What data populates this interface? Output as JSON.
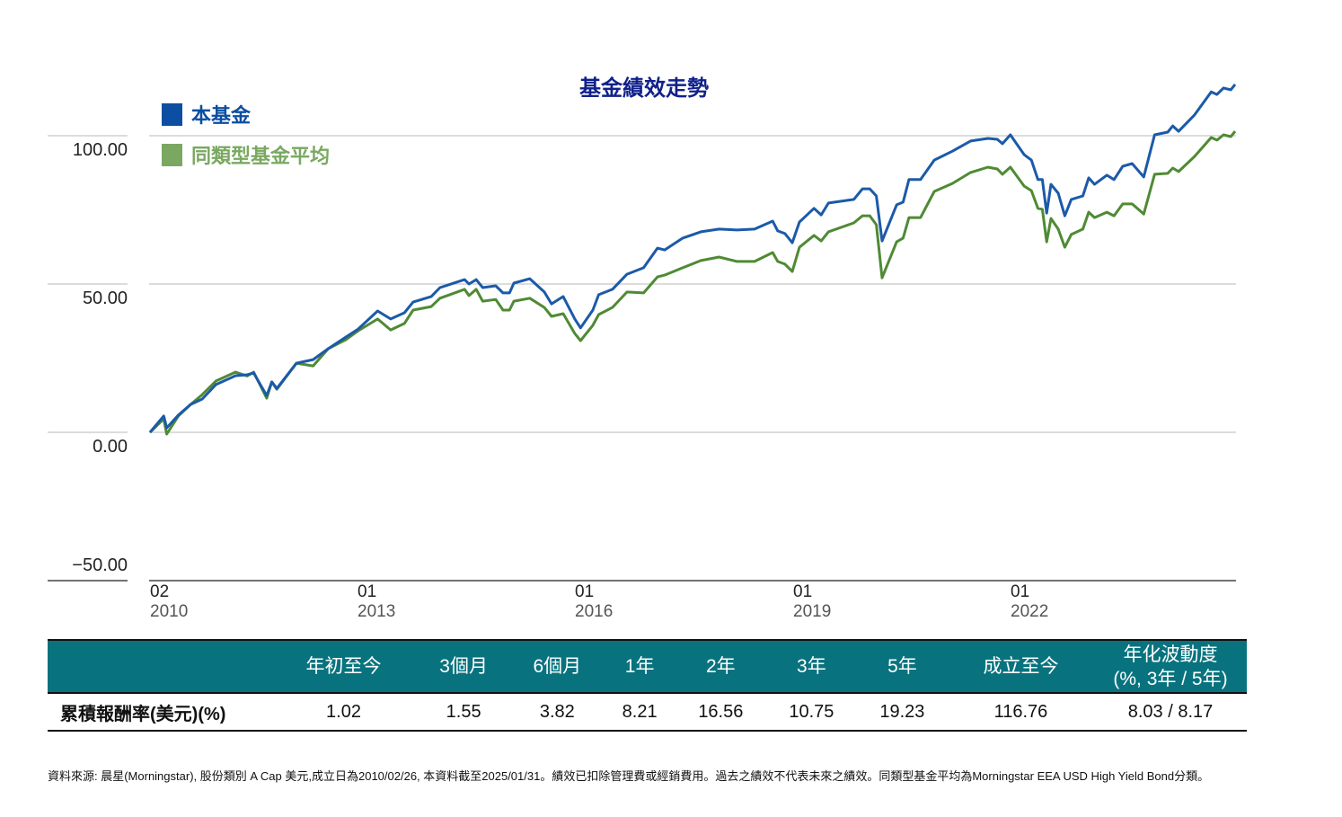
{
  "title": "基金績效走勢",
  "legend": [
    {
      "label": "本基金",
      "color": "#0b4ea2"
    },
    {
      "label": "同類型基金平均",
      "color": "#7aa861"
    }
  ],
  "y_ticks": [
    "100.00",
    "50.00",
    "0.00",
    "−50.00"
  ],
  "x_ticks": [
    {
      "month": "02",
      "year": "2010"
    },
    {
      "month": "01",
      "year": "2013"
    },
    {
      "month": "01",
      "year": "2016"
    },
    {
      "month": "01",
      "year": "2019"
    },
    {
      "month": "01",
      "year": "2022"
    }
  ],
  "chart_data": {
    "type": "line",
    "title": "基金績效走勢",
    "ylim": [
      -50,
      117
    ],
    "yticks": [
      100,
      50,
      0,
      -50
    ],
    "xlim": [
      2010.08,
      2025.05
    ],
    "xtick_values": [
      2010.08,
      2013.0,
      2016.0,
      2019.0,
      2022.0
    ],
    "grid": true,
    "legend_position": "top-left",
    "series_names": [
      "本基金",
      "同類型基金平均"
    ],
    "series_colors": [
      "#1b5aa8",
      "#4f8a34"
    ],
    "rows_date_fund_peer": [
      [
        2010.08,
        0.0,
        0.0
      ],
      [
        2010.27,
        5.5,
        4.5
      ],
      [
        2010.31,
        1.5,
        -0.6
      ],
      [
        2010.47,
        5.8,
        5.5
      ],
      [
        2010.64,
        9.4,
        9.4
      ],
      [
        2010.8,
        11.2,
        12.7
      ],
      [
        2010.99,
        16.1,
        17.3
      ],
      [
        2011.26,
        19.1,
        20.3
      ],
      [
        2011.42,
        19.4,
        19.0
      ],
      [
        2011.51,
        20.0,
        20.3
      ],
      [
        2011.69,
        12.4,
        11.5
      ],
      [
        2011.76,
        17.0,
        17.0
      ],
      [
        2011.83,
        14.8,
        14.5
      ],
      [
        2012.1,
        23.3,
        23.3
      ],
      [
        2012.33,
        24.5,
        22.4
      ],
      [
        2012.54,
        28.2,
        28.2
      ],
      [
        2012.78,
        32.1,
        31.2
      ],
      [
        2012.95,
        34.8,
        34.2
      ],
      [
        2013.22,
        40.9,
        38.2
      ],
      [
        2013.4,
        38.2,
        34.5
      ],
      [
        2013.59,
        40.3,
        36.7
      ],
      [
        2013.71,
        43.9,
        41.2
      ],
      [
        2013.96,
        45.8,
        42.4
      ],
      [
        2014.08,
        48.8,
        45.2
      ],
      [
        2014.42,
        51.5,
        48.2
      ],
      [
        2014.48,
        50.0,
        46.1
      ],
      [
        2014.58,
        51.5,
        48.2
      ],
      [
        2014.67,
        48.8,
        44.2
      ],
      [
        2014.85,
        49.4,
        44.8
      ],
      [
        2014.95,
        47.0,
        41.2
      ],
      [
        2015.04,
        47.0,
        41.2
      ],
      [
        2015.1,
        50.3,
        44.2
      ],
      [
        2015.32,
        51.8,
        45.2
      ],
      [
        2015.52,
        47.3,
        42.1
      ],
      [
        2015.62,
        43.3,
        39.1
      ],
      [
        2015.78,
        45.8,
        40.0
      ],
      [
        2015.94,
        38.2,
        33.3
      ],
      [
        2016.02,
        35.2,
        30.9
      ],
      [
        2016.19,
        41.2,
        36.1
      ],
      [
        2016.27,
        46.4,
        39.7
      ],
      [
        2016.46,
        48.2,
        42.1
      ],
      [
        2016.66,
        53.3,
        47.3
      ],
      [
        2016.89,
        55.5,
        47.0
      ],
      [
        2017.08,
        62.1,
        52.4
      ],
      [
        2017.18,
        61.5,
        53.0
      ],
      [
        2017.43,
        65.5,
        55.5
      ],
      [
        2017.68,
        67.6,
        57.9
      ],
      [
        2017.93,
        68.5,
        59.1
      ],
      [
        2018.18,
        68.2,
        57.6
      ],
      [
        2018.42,
        68.5,
        57.6
      ],
      [
        2018.67,
        71.2,
        60.6
      ],
      [
        2018.74,
        67.9,
        57.6
      ],
      [
        2018.84,
        67.0,
        56.7
      ],
      [
        2018.94,
        63.9,
        54.2
      ],
      [
        2019.04,
        70.9,
        62.4
      ],
      [
        2019.24,
        75.5,
        66.4
      ],
      [
        2019.34,
        73.3,
        64.5
      ],
      [
        2019.44,
        77.3,
        67.6
      ],
      [
        2019.79,
        78.5,
        70.6
      ],
      [
        2019.91,
        82.1,
        73.0
      ],
      [
        2020.01,
        82.1,
        73.0
      ],
      [
        2020.1,
        79.7,
        70.0
      ],
      [
        2020.18,
        64.5,
        52.1
      ],
      [
        2020.38,
        76.7,
        64.2
      ],
      [
        2020.47,
        77.6,
        65.5
      ],
      [
        2020.55,
        85.2,
        72.4
      ],
      [
        2020.71,
        85.2,
        72.4
      ],
      [
        2020.9,
        91.8,
        81.2
      ],
      [
        2021.15,
        94.8,
        83.9
      ],
      [
        2021.4,
        98.2,
        87.6
      ],
      [
        2021.64,
        99.1,
        89.4
      ],
      [
        2021.77,
        98.8,
        88.8
      ],
      [
        2021.84,
        97.3,
        87.0
      ],
      [
        2021.95,
        100.3,
        89.4
      ],
      [
        2022.14,
        93.6,
        83.0
      ],
      [
        2022.24,
        91.8,
        81.5
      ],
      [
        2022.33,
        85.2,
        75.5
      ],
      [
        2022.39,
        85.2,
        75.2
      ],
      [
        2022.45,
        73.9,
        64.2
      ],
      [
        2022.51,
        83.6,
        72.1
      ],
      [
        2022.61,
        80.6,
        68.5
      ],
      [
        2022.7,
        73.0,
        62.4
      ],
      [
        2022.79,
        78.5,
        66.7
      ],
      [
        2022.95,
        79.7,
        68.5
      ],
      [
        2023.03,
        85.8,
        74.2
      ],
      [
        2023.11,
        83.6,
        72.4
      ],
      [
        2023.28,
        86.7,
        74.2
      ],
      [
        2023.38,
        85.2,
        73.0
      ],
      [
        2023.5,
        89.7,
        77.0
      ],
      [
        2023.63,
        90.6,
        77.0
      ],
      [
        2023.79,
        86.1,
        73.6
      ],
      [
        2023.94,
        100.3,
        87.0
      ],
      [
        2024.12,
        101.2,
        87.3
      ],
      [
        2024.19,
        103.3,
        89.1
      ],
      [
        2024.27,
        101.5,
        87.9
      ],
      [
        2024.49,
        107.0,
        93.0
      ],
      [
        2024.72,
        114.8,
        99.4
      ],
      [
        2024.8,
        113.9,
        98.5
      ],
      [
        2024.89,
        116.1,
        100.3
      ],
      [
        2024.99,
        115.5,
        99.7
      ],
      [
        2025.05,
        117.3,
        101.5
      ]
    ]
  },
  "table": {
    "headers": [
      "年初至今",
      "3個月",
      "6個月",
      "1年",
      "2年",
      "3年",
      "5年",
      "成立至今"
    ],
    "vol_header_1": "年化波動度",
    "vol_header_2": "(%, 3年 / 5年)",
    "row_label": "累積報酬率(美元)(%)",
    "values": [
      "1.02",
      "1.55",
      "3.82",
      "8.21",
      "16.56",
      "10.75",
      "19.23",
      "116.76",
      "8.03 / 8.17"
    ]
  },
  "footnote": "資料來源: 晨星(Morningstar), 股份類別 A Cap 美元,成立日為2010/02/26, 本資料截至2025/01/31。績效已扣除管理費或經銷費用。過去之績效不代表未來之績效。同類型基金平均為Morningstar EEA USD High Yield Bond分類。"
}
